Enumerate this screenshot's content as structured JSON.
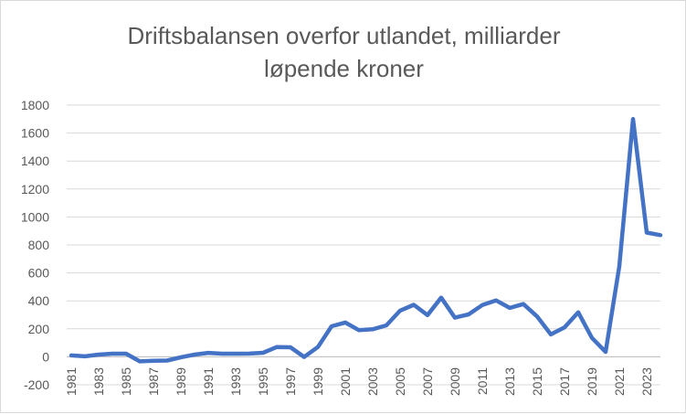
{
  "chart_data": {
    "type": "line",
    "title_line1": "Driftsbalansen overfor utlandet, milliarder",
    "title_line2": "løpende kroner",
    "xlabel": "",
    "ylabel": "",
    "ylim": [
      -200,
      1800
    ],
    "yticks": [
      -200,
      0,
      200,
      400,
      600,
      800,
      1000,
      1200,
      1400,
      1600,
      1800
    ],
    "xtick_labels": [
      "1981",
      "1983",
      "1985",
      "1987",
      "1989",
      "1991",
      "1993",
      "1995",
      "1997",
      "1999",
      "2001",
      "2003",
      "2005",
      "2007",
      "2009",
      "2011",
      "2013",
      "2015",
      "2017",
      "2019",
      "2021",
      "2023"
    ],
    "legend": "none",
    "grid": "horizontal",
    "series_color": "#4472c4",
    "series": [
      {
        "x": [
          1981,
          1982,
          1983,
          1984,
          1985,
          1986,
          1987,
          1988,
          1989,
          1990,
          1991,
          1992,
          1993,
          1994,
          1995,
          1996,
          1997,
          1998,
          1999,
          2000,
          2001,
          2002,
          2003,
          2004,
          2005,
          2006,
          2007,
          2008,
          2009,
          2010,
          2011,
          2012,
          2013,
          2014,
          2015,
          2016,
          2017,
          2018,
          2019,
          2020,
          2021,
          2022,
          2023,
          2024
        ],
        "values": [
          10,
          3,
          16,
          22,
          22,
          -33,
          -28,
          -27,
          -3,
          16,
          28,
          22,
          22,
          23,
          29,
          70,
          68,
          -1,
          70,
          218,
          245,
          190,
          197,
          225,
          330,
          372,
          298,
          423,
          280,
          303,
          370,
          403,
          350,
          377,
          288,
          160,
          210,
          318,
          135,
          35,
          648,
          1700,
          888,
          870
        ]
      }
    ]
  }
}
